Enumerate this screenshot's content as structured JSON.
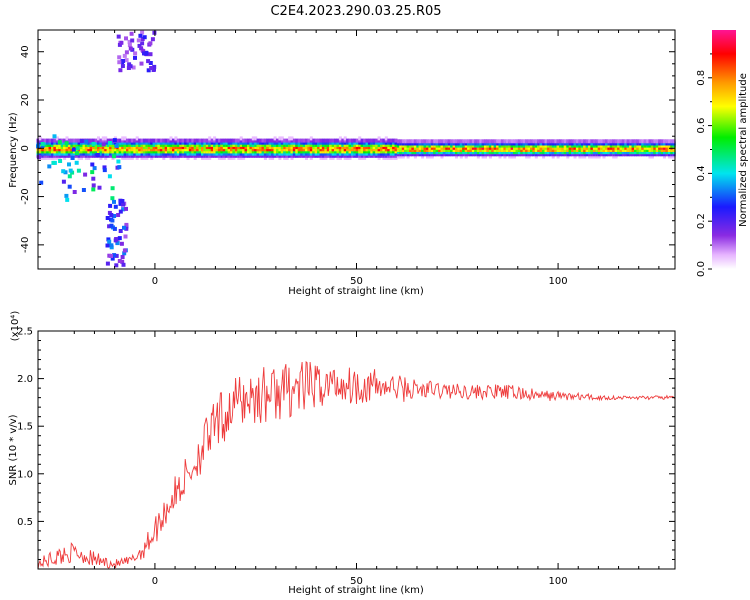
{
  "title": "C2E4.2023.290.03.25.R05",
  "colors": {
    "snr_line": "#ee3b3b",
    "axis": "#000000",
    "spectrogram_background": "#ffffff"
  },
  "chart_data": [
    {
      "type": "heatmap",
      "name": "spectrogram",
      "xlabel": "Height of straight line (km)",
      "ylabel": "Frequency (Hz)",
      "xlim": [
        -29,
        129
      ],
      "ylim": [
        -50,
        49
      ],
      "x_ticks": [
        0,
        50,
        100
      ],
      "x_tick_labels": [
        "0",
        "50",
        "100"
      ],
      "y_ticks": [
        -40,
        -20,
        0,
        20,
        40
      ],
      "y_tick_labels": [
        "-40",
        "-20",
        "0",
        "20",
        "40"
      ],
      "colorbar": {
        "label": "Normalized spectral amplitude",
        "range": [
          0,
          1
        ],
        "ticks": [
          0.0,
          0.2,
          0.4,
          0.6,
          0.8
        ],
        "tick_labels": [
          "0.0",
          "0.2",
          "0.4",
          "0.6",
          "0.8"
        ],
        "colormap": "rainbow (white-violet-blue-cyan-green-yellow-orange-red-magenta)"
      },
      "features": [
        {
          "description": "main band centered at 0 Hz",
          "x_range": [
            -29,
            129
          ],
          "freq_center": 0,
          "freq_halfwidth": 3,
          "peak_amplitude": 0.9
        },
        {
          "description": "scattered energy",
          "x_range": [
            -29,
            -8
          ],
          "freq_range": [
            -22,
            5
          ],
          "peak_amplitude": 0.5
        },
        {
          "description": "descending streak",
          "x_range": [
            -12,
            -7
          ],
          "freq_range": [
            -50,
            -20
          ],
          "peak_amplitude": 0.35
        },
        {
          "description": "upper streak",
          "x_range": [
            -9,
            0
          ],
          "freq_range": [
            32,
            49
          ],
          "peak_amplitude": 0.25
        }
      ]
    },
    {
      "type": "line",
      "name": "snr",
      "xlabel": "Height of straight line (km)",
      "ylabel": "SNR (10 * v/v)",
      "y_multiplier_label": "(x10⁴)",
      "xlim": [
        -29,
        129
      ],
      "ylim": [
        0,
        2.5
      ],
      "x_ticks": [
        0,
        50,
        100
      ],
      "x_tick_labels": [
        "0",
        "50",
        "100"
      ],
      "y_ticks": [
        0.5,
        1.0,
        1.5,
        2.0,
        2.5
      ],
      "y_tick_labels": [
        "0.5",
        "1.0",
        "1.5",
        "2.0",
        "2.5"
      ],
      "series": [
        {
          "x": [
            -29,
            -25,
            -20,
            -15,
            -10,
            -6,
            -3,
            0,
            3,
            6,
            9,
            12,
            15,
            18,
            20,
            23,
            26,
            30,
            35,
            40,
            45,
            50,
            55,
            60,
            65,
            70,
            75,
            80,
            85,
            90,
            95,
            100,
            105,
            110,
            115,
            120,
            125,
            129
          ],
          "y": [
            0.05,
            0.12,
            0.18,
            0.1,
            0.05,
            0.08,
            0.2,
            0.4,
            0.65,
            0.85,
            1.05,
            1.3,
            1.5,
            1.65,
            1.75,
            1.8,
            1.82,
            1.85,
            1.9,
            1.92,
            1.95,
            1.93,
            1.92,
            1.9,
            1.88,
            1.88,
            1.87,
            1.86,
            1.86,
            1.85,
            1.82,
            1.82,
            1.81,
            1.8,
            1.8,
            1.8,
            1.8,
            1.8
          ],
          "noise": [
            0.05,
            0.1,
            0.1,
            0.08,
            0.05,
            0.06,
            0.1,
            0.15,
            0.18,
            0.2,
            0.25,
            0.25,
            0.28,
            0.3,
            0.28,
            0.3,
            0.32,
            0.3,
            0.3,
            0.25,
            0.22,
            0.2,
            0.18,
            0.15,
            0.12,
            0.1,
            0.08,
            0.08,
            0.08,
            0.08,
            0.06,
            0.05,
            0.04,
            0.03,
            0.02,
            0.02,
            0.02,
            0.02
          ]
        }
      ]
    }
  ]
}
